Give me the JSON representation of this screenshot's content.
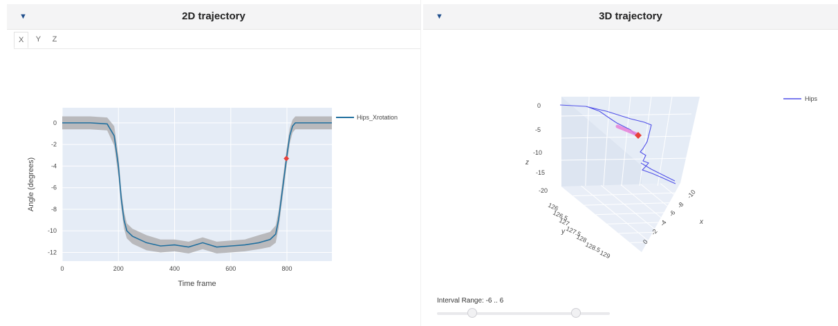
{
  "left_panel": {
    "title": "2D trajectory",
    "collapse_icon": "triangle-down-icon",
    "tabs": [
      {
        "label": "X",
        "active": true
      },
      {
        "label": "Y",
        "active": false
      },
      {
        "label": "Z",
        "active": false
      }
    ]
  },
  "right_panel": {
    "title": "3D trajectory",
    "collapse_icon": "triangle-down-icon",
    "slider_label": "Interval Range: -6 .. 6",
    "slider": {
      "min": -10,
      "max": 10,
      "low": -6,
      "high": 6
    }
  },
  "colors": {
    "line": "#1f6f9f",
    "band": "#b4b4b6",
    "plot_bg": "#e5ecf6",
    "marker": "#e8403a",
    "line3d": "#4f4fe8",
    "marker3d": "#e8403a",
    "trail3d": "#e77ad8"
  },
  "chart_data": [
    {
      "type": "line",
      "xlabel": "Time frame",
      "ylabel": "Angle (degrees)",
      "xlim": [
        0,
        960
      ],
      "ylim": [
        -12.8,
        1.4
      ],
      "xticks": [
        0,
        200,
        400,
        600,
        800
      ],
      "yticks": [
        0,
        -2,
        -4,
        -6,
        -8,
        -10,
        -12
      ],
      "grid": true,
      "legend_position": "top-right",
      "series": [
        {
          "name": "Hips_Xrotation",
          "x": [
            0,
            100,
            160,
            185,
            200,
            210,
            220,
            230,
            250,
            300,
            350,
            400,
            450,
            500,
            550,
            600,
            650,
            700,
            740,
            760,
            770,
            780,
            790,
            800,
            810,
            820,
            830,
            850,
            900,
            960
          ],
          "y": [
            0,
            0,
            -0.1,
            -1.2,
            -4,
            -7,
            -9,
            -10,
            -10.5,
            -11.1,
            -11.4,
            -11.3,
            -11.5,
            -11.1,
            -11.5,
            -11.4,
            -11.3,
            -11.1,
            -10.8,
            -10.3,
            -9,
            -7,
            -5,
            -3,
            -1.2,
            -0.3,
            0,
            0,
            0,
            0
          ],
          "band_upper": [
            0.6,
            0.6,
            0.5,
            -0.3,
            -3,
            -6.2,
            -8.2,
            -9.3,
            -9.8,
            -10.4,
            -10.8,
            -10.8,
            -11,
            -10.6,
            -11,
            -10.9,
            -10.8,
            -10.4,
            -10.1,
            -9.5,
            -8.2,
            -6.2,
            -4.2,
            -2.2,
            -0.5,
            0.3,
            0.6,
            0.6,
            0.6,
            0.6
          ],
          "band_lower": [
            -0.6,
            -0.6,
            -0.7,
            -2.1,
            -5,
            -7.8,
            -9.8,
            -10.7,
            -11.2,
            -11.8,
            -12,
            -11.9,
            -12.1,
            -11.7,
            -12.1,
            -12,
            -11.9,
            -11.7,
            -11.5,
            -11.1,
            -9.8,
            -7.8,
            -5.8,
            -3.8,
            -1.9,
            -0.9,
            -0.6,
            -0.6,
            -0.6,
            -0.6
          ]
        }
      ],
      "marker": {
        "x": 798,
        "y": -3.3
      }
    },
    {
      "type": "scatter3d",
      "axis_labels": {
        "x": "x",
        "y": "y",
        "z": "z"
      },
      "x_ticks": [
        "-10",
        "-8",
        "-6",
        "-4",
        "-2",
        "0"
      ],
      "y_ticks": [
        "126",
        "126.5",
        "127",
        "127.5",
        "128",
        "128.5",
        "129"
      ],
      "z_ticks": [
        "0",
        "-5",
        "-10",
        "-15",
        "-20"
      ],
      "legend_position": "top-right",
      "series": [
        {
          "name": "Hips"
        }
      ]
    }
  ]
}
